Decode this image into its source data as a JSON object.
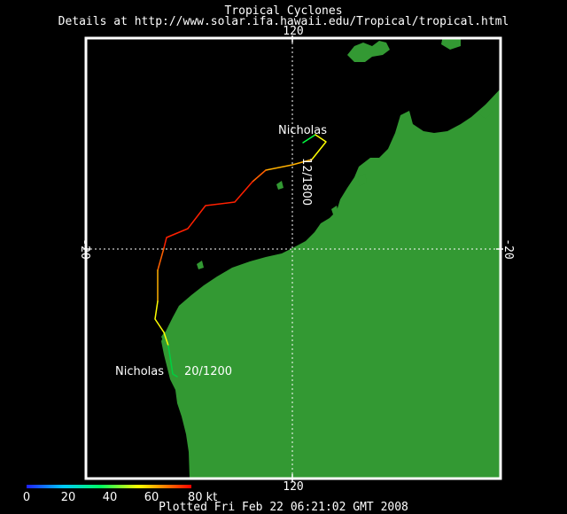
{
  "header": {
    "title": "Tropical Cyclones",
    "details": "Details at http://www.solar.ifa.hawaii.edu/Tropical/tropical.html"
  },
  "axes": {
    "lon_label_top": "120",
    "lon_label_bottom": "120",
    "lat_label_left": "-20",
    "lat_label_right": "-20"
  },
  "storm": {
    "name_start": "Nicholas",
    "name_end": "Nicholas",
    "start_time": "12/1800",
    "end_time": "20/1200"
  },
  "legend": {
    "ticks": [
      "0",
      "20",
      "40",
      "60",
      "80 kt"
    ],
    "colors": [
      "#2020ff",
      "#00c8ff",
      "#00ff60",
      "#ffff00",
      "#ff8000",
      "#ff0000"
    ]
  },
  "footer": "Plotted Fri Feb 22 06:21:02 GMT 2008",
  "colors": {
    "land": "#339933",
    "ocean": "#000000",
    "frame": "#ffffff"
  }
}
